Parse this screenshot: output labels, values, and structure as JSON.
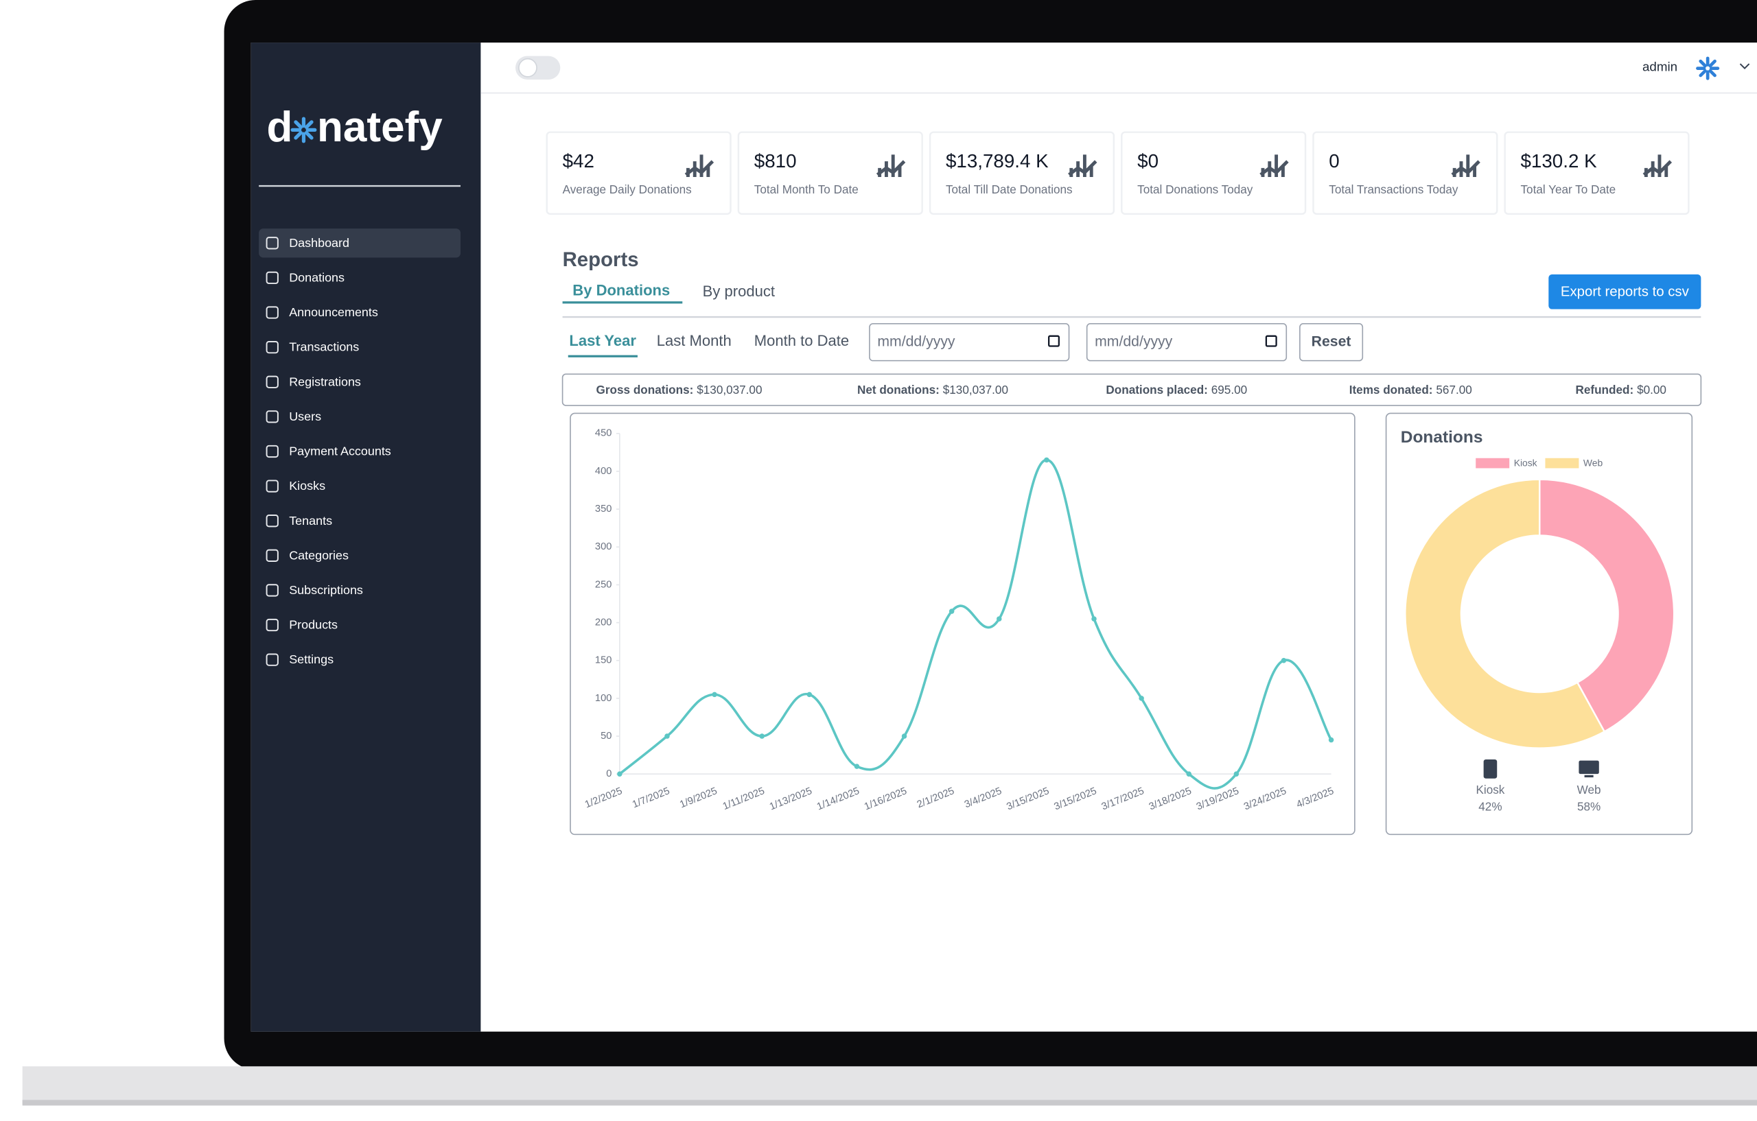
{
  "brand": {
    "prefix": "d",
    "suffix": "natefy"
  },
  "header": {
    "user": "admin"
  },
  "sidebar": [
    "Dashboard",
    "Donations",
    "Announcements",
    "Transactions",
    "Registrations",
    "Users",
    "Payment Accounts",
    "Kiosks",
    "Tenants",
    "Categories",
    "Subscriptions",
    "Products",
    "Settings"
  ],
  "stats": [
    {
      "value": "$42",
      "label": "Average Daily Donations"
    },
    {
      "value": "$810",
      "label": "Total Month To Date"
    },
    {
      "value": "$13,789.4 K",
      "label": "Total Till Date Donations"
    },
    {
      "value": "$0",
      "label": "Total Donations Today"
    },
    {
      "value": "0",
      "label": "Total Transactions Today"
    },
    {
      "value": "$130.2 K",
      "label": "Total Year To Date"
    }
  ],
  "reports": {
    "title": "Reports",
    "tabs": [
      "By Donations",
      "By product"
    ],
    "export": "Export reports to csv",
    "ranges": [
      "Last Year",
      "Last Month",
      "Month to Date"
    ],
    "date_placeholder": "mm/dd/yyyy",
    "reset": "Reset"
  },
  "summary": [
    {
      "label": "Gross donations:",
      "value": "$130,037.00"
    },
    {
      "label": "Net donations:",
      "value": "$130,037.00"
    },
    {
      "label": "Donations placed:",
      "value": "695.00"
    },
    {
      "label": "Items donated:",
      "value": "567.00"
    },
    {
      "label": "Refunded:",
      "value": "$0.00"
    }
  ],
  "chart_data": [
    {
      "type": "line",
      "categories": [
        "1/2/2025",
        "1/7/2025",
        "1/9/2025",
        "1/11/2025",
        "1/13/2025",
        "1/14/2025",
        "1/16/2025",
        "2/1/2025",
        "3/4/2025",
        "3/15/2025",
        "3/15/2025",
        "3/17/2025",
        "3/18/2025",
        "3/19/2025",
        "3/24/2025",
        "4/3/2025"
      ],
      "values": [
        0,
        50,
        105,
        50,
        105,
        10,
        50,
        215,
        205,
        415,
        205,
        100,
        0,
        0,
        150,
        45
      ],
      "color": "#5cc6c4",
      "ylim": [
        0,
        450
      ],
      "yticks": [
        0,
        50,
        100,
        150,
        200,
        250,
        300,
        350,
        400,
        450
      ],
      "grid": false
    },
    {
      "type": "pie",
      "title": "Donations",
      "categories": [
        "Kiosk",
        "Web"
      ],
      "values": [
        42,
        58
      ],
      "value_labels": [
        "42%",
        "58%"
      ],
      "colors": [
        "#fda4b6",
        "#fde09a"
      ],
      "legend": "top"
    }
  ]
}
